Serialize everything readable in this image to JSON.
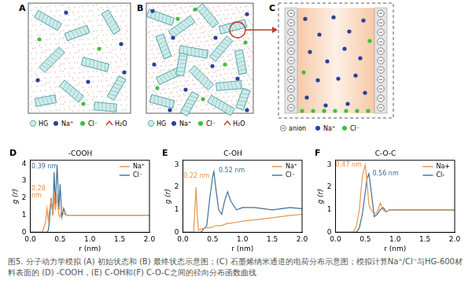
{
  "figure": {
    "panels": [
      {
        "letter": "A",
        "legend": [
          {
            "label": "HG",
            "color": "#4aa3a3"
          },
          {
            "label": "Na⁺",
            "color": "#2b3f9e"
          },
          {
            "label": "Cl⁻",
            "color": "#3fbf3f"
          },
          {
            "label": "H₂O",
            "color": "#c0392b"
          }
        ]
      },
      {
        "letter": "B",
        "legend": [
          {
            "label": "HG",
            "color": "#4aa3a3"
          },
          {
            "label": "Na⁺",
            "color": "#2b3f9e"
          },
          {
            "label": "Cl⁻",
            "color": "#3fbf3f"
          },
          {
            "label": "H₂O",
            "color": "#c0392b"
          }
        ]
      },
      {
        "letter": "C",
        "legend": [
          {
            "label": "anion",
            "color": "#888888"
          },
          {
            "label": "Na⁺",
            "color": "#2b3f9e"
          },
          {
            "label": "Cl⁻",
            "color": "#3fbf3f"
          }
        ]
      }
    ],
    "caption": "图5. 分子动力学模拟 (A) 初始状态和 (B) 最终状态示意图；(C) 石墨烯纳米通道的电荷分布示意图；模拟计算Na⁺/Cl⁻与HG-600材料表面的 (D) -COOH，(E) C-OH和(F) C-O-C之间的径向分布函数曲线"
  },
  "chart_data": [
    {
      "panel": "D",
      "type": "line",
      "title": "-COOH",
      "x_label": "r (nm)",
      "y_label": "g (r)",
      "x": [
        0,
        0.2,
        0.25,
        0.28,
        0.3,
        0.32,
        0.35,
        0.38,
        0.4,
        0.42,
        0.45,
        0.48,
        0.5,
        0.53,
        0.56,
        0.6,
        0.7,
        0.8,
        1.0,
        1.5,
        2.0
      ],
      "series": [
        {
          "name": "Na⁺",
          "color": "#e8944a",
          "values": [
            0,
            0,
            0.5,
            1.4,
            0.7,
            1.2,
            1.9,
            1.0,
            2.4,
            1.3,
            2.1,
            1.0,
            0.9,
            1.3,
            1.1,
            1.0,
            1.0,
            1.0,
            1.0,
            1.0,
            1.0
          ]
        },
        {
          "name": "Cl⁻",
          "color": "#3f6f94",
          "values": [
            0,
            0,
            0,
            0,
            0.1,
            0.6,
            2.0,
            1.0,
            3.5,
            1.6,
            3.9,
            1.3,
            2.8,
            0.9,
            1.4,
            1.0,
            1.0,
            1.0,
            1.0,
            1.0,
            1.0
          ]
        }
      ],
      "xlim": [
        0,
        2
      ],
      "xticks": [
        {
          "value": 0,
          "label": "0.0"
        },
        0.5,
        {
          "value": 1,
          "label": "1.0"
        },
        1.5,
        {
          "value": 2,
          "label": "2.0"
        }
      ],
      "ylim": [
        0,
        4.2
      ],
      "yticks": [
        0,
        1,
        2,
        3,
        4
      ],
      "grid": false,
      "legend": "upper right",
      "annotations": [
        {
          "text": "0.39 nm",
          "color": "#3f6f94"
        },
        {
          "text": "0.28 nm",
          "color": "#e8944a"
        }
      ]
    },
    {
      "panel": "E",
      "type": "line",
      "title": "C-OH",
      "x_label": "r (nm)",
      "y_label": "g (r)",
      "x": [
        0,
        0.18,
        0.2,
        0.22,
        0.24,
        0.26,
        0.3,
        0.4,
        0.45,
        0.5,
        0.52,
        0.55,
        0.6,
        0.65,
        0.7,
        0.75,
        0.8,
        0.9,
        1.0,
        1.2,
        1.5,
        1.8,
        2.0
      ],
      "series": [
        {
          "name": "Na⁺",
          "color": "#e8944a",
          "values": [
            0,
            0,
            1.0,
            2.0,
            0.8,
            0.1,
            0.15,
            0.2,
            0.2,
            0.25,
            0.25,
            0.3,
            0.3,
            0.3,
            0.35,
            0.4,
            0.4,
            0.45,
            0.5,
            0.55,
            0.65,
            0.75,
            0.8
          ]
        },
        {
          "name": "Cl⁻",
          "color": "#3f6f94",
          "values": [
            0,
            0,
            0,
            0,
            0,
            0,
            0,
            0.3,
            1.5,
            2.5,
            2.7,
            2.0,
            1.0,
            0.8,
            1.4,
            1.8,
            1.4,
            1.0,
            1.1,
            1.1,
            1.0,
            1.1,
            1.05
          ]
        }
      ],
      "xlim": [
        0,
        2
      ],
      "xticks": [
        {
          "value": 0,
          "label": "0.0"
        },
        0.5,
        {
          "value": 1,
          "label": "1.0"
        },
        1.5,
        {
          "value": 2,
          "label": "2.0"
        }
      ],
      "ylim": [
        0,
        3.2
      ],
      "yticks": [
        0,
        1,
        2,
        3
      ],
      "grid": false,
      "legend": "upper right",
      "annotations": [
        {
          "text": "0.22 nm",
          "color": "#e8944a"
        },
        {
          "text": "0.52 nm",
          "color": "#3f6f94"
        }
      ]
    },
    {
      "panel": "F",
      "type": "line",
      "title": "C-O-C",
      "x_label": "r (nm)",
      "y_label": "g (r)",
      "x": [
        0,
        0.3,
        0.35,
        0.4,
        0.45,
        0.5,
        0.53,
        0.56,
        0.6,
        0.65,
        0.7,
        0.75,
        0.8,
        0.85,
        0.9,
        1.0,
        1.2,
        1.5,
        2.0
      ],
      "series": [
        {
          "name": "Na+",
          "color": "#e8944a",
          "values": [
            0,
            0,
            0.3,
            1.0,
            2.5,
            3.0,
            2.2,
            1.2,
            1.0,
            0.8,
            0.9,
            1.3,
            1.0,
            0.9,
            1.0,
            1.0,
            1.0,
            1.0,
            1.0
          ]
        },
        {
          "name": "Cl-",
          "color": "#3f6f94",
          "values": [
            0,
            0,
            0,
            0.2,
            0.8,
            1.8,
            2.4,
            2.6,
            1.8,
            0.7,
            0.8,
            1.0,
            1.1,
            0.9,
            1.0,
            1.0,
            1.0,
            1.0,
            1.0
          ]
        }
      ],
      "xlim": [
        0,
        2
      ],
      "xticks": [
        {
          "value": 0,
          "label": "0.0"
        },
        0.5,
        {
          "value": 1,
          "label": "1.0"
        },
        1.5,
        {
          "value": 2,
          "label": "2.0"
        }
      ],
      "ylim": [
        0,
        3.2
      ],
      "yticks": [
        0,
        1,
        2,
        3
      ],
      "grid": false,
      "legend": "upper right",
      "annotations": [
        {
          "text": "0.47 nm",
          "color": "#e8944a"
        },
        {
          "text": "0.56 nm",
          "color": "#3f6f94"
        }
      ]
    }
  ]
}
